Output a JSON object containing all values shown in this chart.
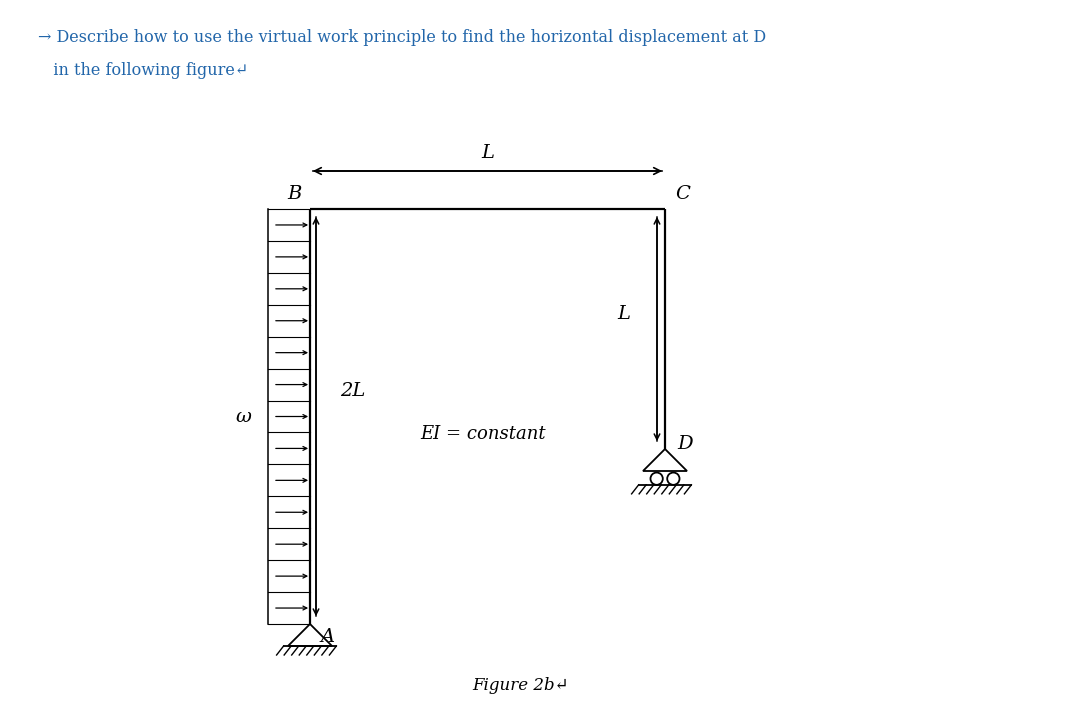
{
  "title_line1": "→ Describe how to use the virtual work principle to find the horizontal displacement at D",
  "title_line2": "   in the following figure↵",
  "figure_label": "Figure 2b↵",
  "label_B": "B",
  "label_C": "C",
  "label_A": "A",
  "label_D": "D",
  "label_L_top": "L",
  "label_2L": "2L",
  "label_L_right": "L",
  "label_EI": "EI = constant",
  "label_omega": "ω",
  "bg_color": "#ffffff",
  "text_color": "#000000",
  "title_color": "#2266aa",
  "struct_color": "#000000",
  "frame_lw": 1.6
}
